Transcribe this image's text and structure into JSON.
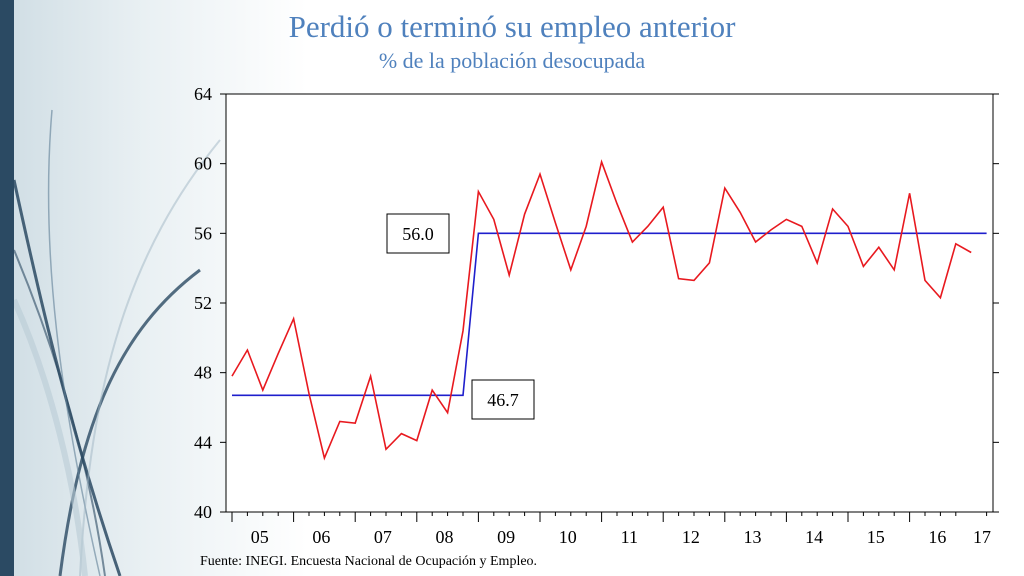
{
  "slide": {
    "title": "Perdió o terminó su empleo anterior",
    "subtitle": "% de la población desocupada",
    "footnote": "Fuente: INEGI. Encuesta Nacional de Ocupación y Empleo."
  },
  "colors": {
    "series_line": "#e8191f",
    "average_line": "#1f1fcc",
    "title": "#4f81bd",
    "left_bar": "#2b4a63"
  },
  "chart_data": {
    "type": "line",
    "title": "Perdió o terminó su empleo anterior",
    "subtitle": "% de la población desocupada",
    "xlabel": "",
    "ylabel": "",
    "ylim": [
      40,
      64
    ],
    "yticks": [
      40,
      44,
      48,
      52,
      56,
      60,
      64
    ],
    "xlim": [
      2005.0,
      2017.5
    ],
    "xticks": [
      "05",
      "06",
      "07",
      "08",
      "09",
      "10",
      "11",
      "12",
      "13",
      "14",
      "15",
      "16",
      "17"
    ],
    "grid": false,
    "frequency": "quarterly",
    "series": [
      {
        "x": [
          "2005-Q1",
          "2005-Q2",
          "2005-Q3",
          "2005-Q4",
          "2006-Q1",
          "2006-Q2",
          "2006-Q3",
          "2006-Q4",
          "2007-Q1",
          "2007-Q2",
          "2007-Q3",
          "2007-Q4",
          "2008-Q1",
          "2008-Q2",
          "2008-Q3",
          "2008-Q4",
          "2009-Q1",
          "2009-Q2",
          "2009-Q3",
          "2009-Q4",
          "2010-Q1",
          "2010-Q2",
          "2010-Q3",
          "2010-Q4",
          "2011-Q1",
          "2011-Q2",
          "2011-Q3",
          "2011-Q4",
          "2012-Q1",
          "2012-Q2",
          "2012-Q3",
          "2012-Q4",
          "2013-Q1",
          "2013-Q2",
          "2013-Q3",
          "2013-Q4",
          "2014-Q1",
          "2014-Q2",
          "2014-Q3",
          "2014-Q4",
          "2015-Q1",
          "2015-Q2",
          "2015-Q3",
          "2015-Q4",
          "2016-Q1",
          "2016-Q2",
          "2016-Q3",
          "2016-Q4",
          "2017-Q1"
        ],
        "values": [
          47.8,
          49.3,
          47.0,
          49.1,
          51.1,
          46.8,
          43.1,
          45.2,
          45.1,
          47.8,
          43.6,
          44.5,
          44.1,
          47.0,
          45.7,
          50.4,
          58.4,
          56.8,
          53.6,
          57.1,
          59.4,
          56.6,
          53.9,
          56.4,
          60.1,
          57.7,
          55.5,
          56.4,
          57.5,
          53.4,
          53.3,
          54.3,
          58.6,
          57.2,
          55.5,
          56.2,
          56.8,
          56.4,
          54.3,
          57.4,
          56.4,
          54.1,
          55.2,
          53.9,
          58.3,
          53.3,
          52.3,
          55.4,
          54.9
        ]
      },
      {
        "kind": "step",
        "segments": [
          {
            "from": "2005-Q1",
            "to": "2008-Q4",
            "value": 46.7
          },
          {
            "from": "2009-Q1",
            "to": "2017-Q2",
            "value": 56.0
          }
        ]
      }
    ],
    "annotations": [
      {
        "text": "56.0",
        "value": 56.0
      },
      {
        "text": "46.7",
        "value": 46.7
      }
    ]
  }
}
